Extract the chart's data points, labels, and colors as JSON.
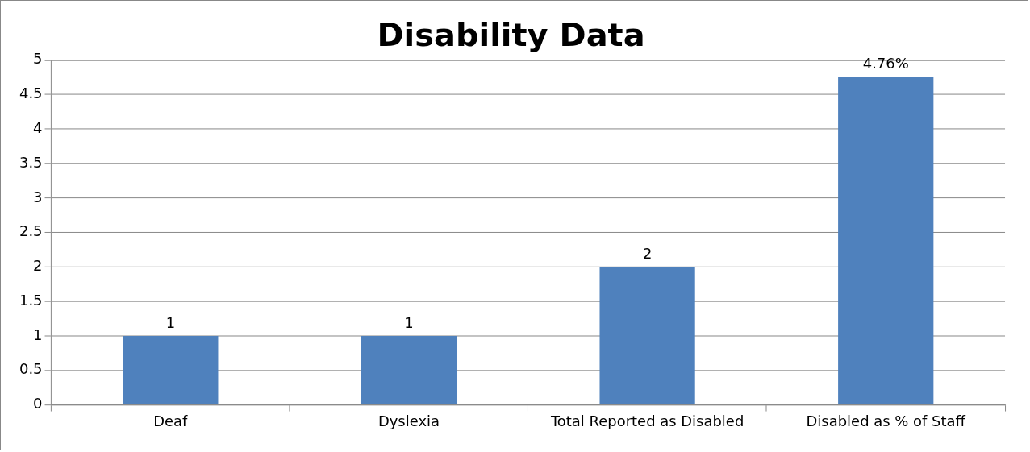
{
  "chart_data": {
    "type": "bar",
    "title": "Disability Data",
    "categories": [
      "Deaf",
      "Dyslexia",
      "Total Reported as Disabled",
      "Disabled as % of Staff"
    ],
    "values": [
      1,
      1,
      2,
      4.76
    ],
    "value_labels": [
      "1",
      "1",
      "2",
      "4.76%"
    ],
    "color": "#4f81bd",
    "ylim": [
      0,
      5
    ],
    "yticks": [
      0,
      0.5,
      1,
      1.5,
      2,
      2.5,
      3,
      3.5,
      4,
      4.5,
      5
    ],
    "grid": "y",
    "legend": false
  }
}
